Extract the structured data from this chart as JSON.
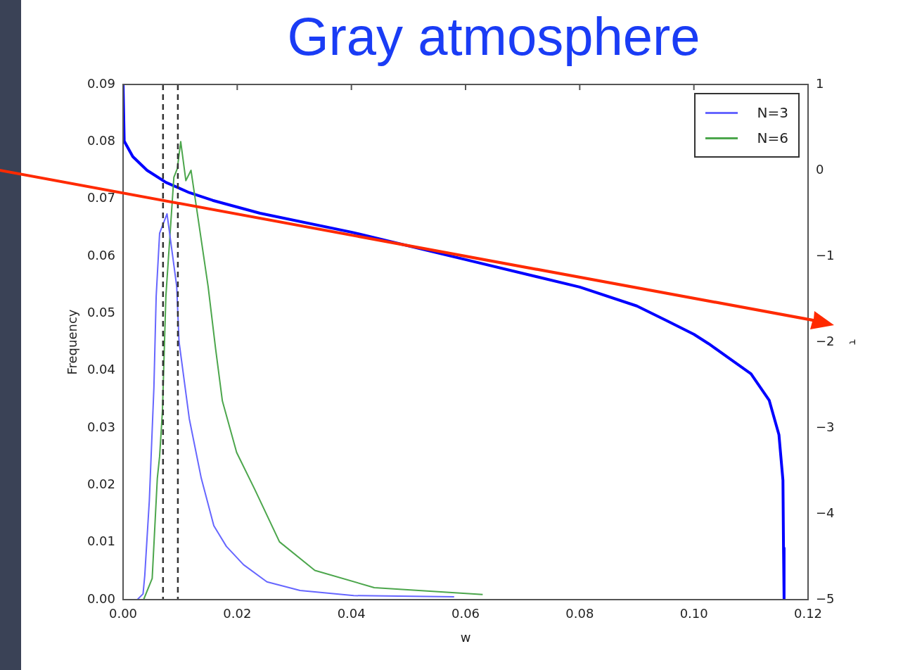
{
  "chart_data": {
    "type": "line",
    "title": "Gray atmosphere",
    "xlabel": "w",
    "ylabel": "Frequency",
    "y2label": "τ",
    "xlim": [
      0,
      0.12
    ],
    "xticks": [
      {
        "value": 0,
        "label": "0.00"
      },
      {
        "value": 0.02,
        "label": "0.02"
      },
      {
        "value": 0.04,
        "label": "0.04"
      },
      {
        "value": 0.06,
        "label": "0.06"
      },
      {
        "value": 0.08,
        "label": "0.08"
      },
      {
        "value": 0.1,
        "label": "0.10"
      },
      {
        "value": 0.12,
        "label": "0.12"
      }
    ],
    "ylim": [
      0,
      0.09
    ],
    "yticks": [
      {
        "value": 0,
        "label": "0.00"
      },
      {
        "value": 0.01,
        "label": "0.01"
      },
      {
        "value": 0.02,
        "label": "0.02"
      },
      {
        "value": 0.03,
        "label": "0.03"
      },
      {
        "value": 0.04,
        "label": "0.04"
      },
      {
        "value": 0.05,
        "label": "0.05"
      },
      {
        "value": 0.06,
        "label": "0.06"
      },
      {
        "value": 0.07,
        "label": "0.07"
      },
      {
        "value": 0.08,
        "label": "0.08"
      },
      {
        "value": 0.09,
        "label": "0.09"
      }
    ],
    "y2lim": [
      -5,
      1
    ],
    "y2ticks": [
      {
        "value": -5,
        "label": "−5"
      },
      {
        "value": -4,
        "label": "−4"
      },
      {
        "value": -3,
        "label": "−3"
      },
      {
        "value": -2,
        "label": "−2"
      },
      {
        "value": -1,
        "label": "−1"
      },
      0,
      1
    ],
    "series": [
      {
        "name": "N=3",
        "color": "#6666ff",
        "x": [
          0.0025,
          0.0035,
          0.0038,
          0.0046,
          0.0054,
          0.0058,
          0.0064,
          0.0077,
          0.0094,
          0.0098,
          0.0116,
          0.0137,
          0.0159,
          0.0181,
          0.0211,
          0.0252,
          0.031,
          0.0404,
          0.058
        ],
        "values": [
          0,
          0.001,
          0.0042,
          0.0173,
          0.037,
          0.053,
          0.064,
          0.0674,
          0.0547,
          0.0451,
          0.0316,
          0.0212,
          0.0129,
          0.0093,
          0.0061,
          0.0031,
          0.0016,
          0.0007,
          0.0005
        ]
      },
      {
        "name": "N=6",
        "color": "#4ca64c",
        "x": [
          0.0036,
          0.0051,
          0.006,
          0.0064,
          0.0069,
          0.0075,
          0.0089,
          0.0095,
          0.0101,
          0.011,
          0.0119,
          0.0149,
          0.0162,
          0.0174,
          0.0199,
          0.0231,
          0.0274,
          0.0336,
          0.044,
          0.063
        ],
        "values": [
          0,
          0.0037,
          0.0212,
          0.025,
          0.033,
          0.053,
          0.0738,
          0.0753,
          0.08,
          0.0732,
          0.075,
          0.0547,
          0.0439,
          0.0347,
          0.0257,
          0.0192,
          0.0101,
          0.0051,
          0.0021,
          0.0009
        ]
      },
      {
        "color": "#0000ff",
        "axis": "y2",
        "x": [
          0,
          0.0002,
          0.0017,
          0.0042,
          0.0075,
          0.0116,
          0.0157,
          0.024,
          0.04,
          0.06,
          0.08,
          0.09,
          0.0952,
          0.1,
          0.1026,
          0.11,
          0.1132,
          0.1149,
          0.1156,
          0.1157,
          0.1158
        ],
        "values": [
          1,
          0.34,
          0.16,
          0,
          -0.14,
          -0.26,
          -0.35,
          -0.5,
          -0.72,
          -1.04,
          -1.36,
          -1.58,
          -1.75,
          -1.91,
          -2.02,
          -2.37,
          -2.68,
          -3.08,
          -3.61,
          -4.4,
          -5
        ]
      }
    ],
    "ref_lines": [
      {
        "axis": "x",
        "value": 0.007,
        "color": "#333333",
        "line_style": "dashed"
      },
      {
        "axis": "x",
        "value": 0.0096,
        "color": "#333333",
        "line_style": "dashed"
      }
    ],
    "legend": "top right",
    "grid": false,
    "marker": "none"
  }
}
